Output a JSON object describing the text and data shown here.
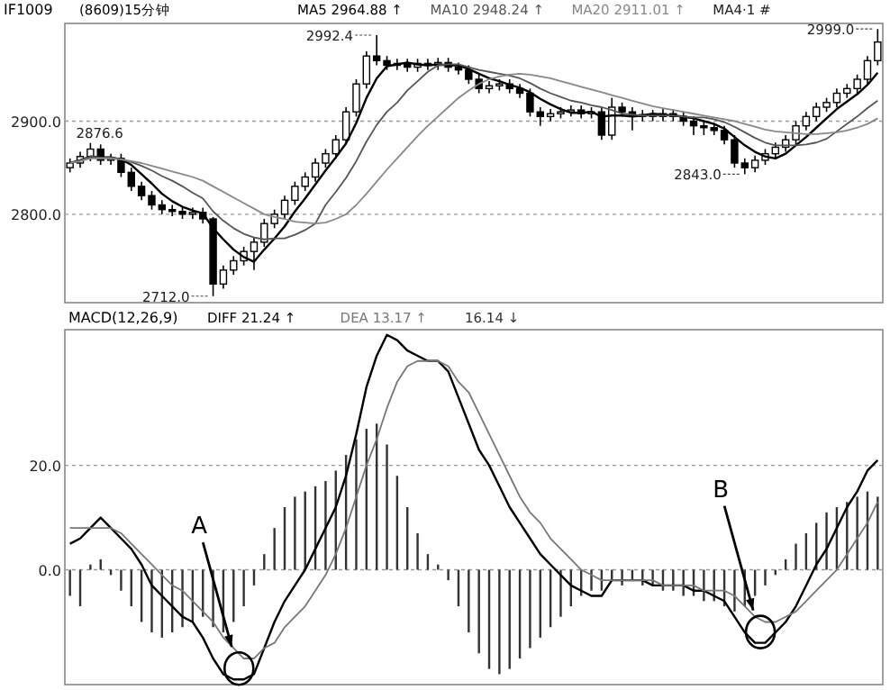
{
  "chart_data": [
    {
      "type": "candlestick",
      "title": "IF1009",
      "subtitle": "(8609)15分钟",
      "legend": "top",
      "grid": "y",
      "categories": [
        null,
        null,
        null,
        null,
        null,
        null,
        null,
        null,
        null,
        null,
        null,
        null,
        null,
        null,
        null,
        null,
        null,
        null,
        null,
        null,
        null,
        null,
        null,
        null,
        null,
        null,
        null,
        null,
        null,
        null,
        null,
        null,
        null,
        null,
        null,
        null,
        null,
        null,
        null,
        null,
        null,
        null,
        null,
        null,
        null,
        null,
        null,
        null,
        null,
        null,
        null,
        null,
        null,
        null,
        null,
        null,
        null,
        null,
        null,
        null,
        null,
        null,
        null,
        null,
        null,
        null,
        null,
        null,
        null,
        null,
        null,
        null,
        null,
        null,
        null,
        null,
        null,
        null,
        null,
        null
      ],
      "ylim": [
        2705,
        3005
      ],
      "yticks": [
        {
          "value": 2900,
          "label": "2900.0"
        },
        {
          "value": 2800,
          "label": "2800.0"
        }
      ],
      "ohlc": [
        [
          2850,
          2860,
          2845,
          2855
        ],
        [
          2855,
          2867,
          2850,
          2862
        ],
        [
          2862,
          2876.6,
          2857,
          2870
        ],
        [
          2870,
          2875,
          2853,
          2858
        ],
        [
          2858,
          2865,
          2853,
          2860
        ],
        [
          2860,
          2865,
          2840,
          2845
        ],
        [
          2845,
          2850,
          2825,
          2830
        ],
        [
          2830,
          2835,
          2815,
          2820
        ],
        [
          2820,
          2825,
          2805,
          2810
        ],
        [
          2810,
          2815,
          2800,
          2805
        ],
        [
          2805,
          2810,
          2798,
          2803
        ],
        [
          2803,
          2808,
          2795,
          2800
        ],
        [
          2800,
          2807,
          2795,
          2802
        ],
        [
          2802,
          2807,
          2790,
          2795
        ],
        [
          2795,
          2797,
          2712,
          2725
        ],
        [
          2725,
          2745,
          2720,
          2740
        ],
        [
          2740,
          2755,
          2735,
          2750
        ],
        [
          2750,
          2765,
          2745,
          2760
        ],
        [
          2760,
          2775,
          2740,
          2770
        ],
        [
          2770,
          2795,
          2765,
          2790
        ],
        [
          2790,
          2805,
          2785,
          2800
        ],
        [
          2800,
          2820,
          2795,
          2815
        ],
        [
          2815,
          2835,
          2810,
          2830
        ],
        [
          2830,
          2845,
          2825,
          2840
        ],
        [
          2840,
          2860,
          2835,
          2855
        ],
        [
          2855,
          2870,
          2850,
          2865
        ],
        [
          2865,
          2885,
          2860,
          2880
        ],
        [
          2880,
          2915,
          2875,
          2910
        ],
        [
          2910,
          2945,
          2905,
          2940
        ],
        [
          2940,
          2975,
          2935,
          2970
        ],
        [
          2970,
          2992.4,
          2960,
          2965
        ],
        [
          2965,
          2970,
          2955,
          2960
        ],
        [
          2960,
          2967,
          2955,
          2962
        ],
        [
          2962,
          2967,
          2953,
          2958
        ],
        [
          2958,
          2967,
          2953,
          2962
        ],
        [
          2962,
          2967,
          2955,
          2960
        ],
        [
          2960,
          2968,
          2955,
          2963
        ],
        [
          2963,
          2968,
          2953,
          2958
        ],
        [
          2958,
          2963,
          2950,
          2955
        ],
        [
          2955,
          2960,
          2940,
          2945
        ],
        [
          2945,
          2950,
          2930,
          2935
        ],
        [
          2935,
          2943,
          2930,
          2938
        ],
        [
          2938,
          2945,
          2933,
          2940
        ],
        [
          2940,
          2945,
          2930,
          2935
        ],
        [
          2935,
          2940,
          2925,
          2930
        ],
        [
          2930,
          2935,
          2905,
          2910
        ],
        [
          2910,
          2915,
          2895,
          2905
        ],
        [
          2905,
          2913,
          2900,
          2908
        ],
        [
          2908,
          2915,
          2903,
          2910
        ],
        [
          2910,
          2917,
          2905,
          2912
        ],
        [
          2912,
          2917,
          2903,
          2908
        ],
        [
          2908,
          2915,
          2903,
          2910
        ],
        [
          2910,
          2915,
          2880,
          2885
        ],
        [
          2885,
          2925,
          2880,
          2915
        ],
        [
          2915,
          2920,
          2905,
          2910
        ],
        [
          2910,
          2915,
          2890,
          2905
        ],
        [
          2905,
          2912,
          2900,
          2907
        ],
        [
          2907,
          2912,
          2900,
          2905
        ],
        [
          2905,
          2913,
          2900,
          2908
        ],
        [
          2908,
          2913,
          2900,
          2905
        ],
        [
          2905,
          2910,
          2895,
          2900
        ],
        [
          2900,
          2905,
          2885,
          2895
        ],
        [
          2895,
          2900,
          2885,
          2893
        ],
        [
          2893,
          2898,
          2885,
          2890
        ],
        [
          2890,
          2895,
          2875,
          2880
        ],
        [
          2880,
          2885,
          2850,
          2855
        ],
        [
          2855,
          2860,
          2843,
          2850
        ],
        [
          2850,
          2863,
          2845,
          2858
        ],
        [
          2858,
          2870,
          2853,
          2865
        ],
        [
          2865,
          2877,
          2860,
          2872
        ],
        [
          2872,
          2885,
          2867,
          2880
        ],
        [
          2880,
          2900,
          2875,
          2895
        ],
        [
          2895,
          2910,
          2890,
          2905
        ],
        [
          2905,
          2920,
          2900,
          2915
        ],
        [
          2915,
          2925,
          2910,
          2920
        ],
        [
          2920,
          2935,
          2915,
          2930
        ],
        [
          2930,
          2940,
          2925,
          2935
        ],
        [
          2935,
          2950,
          2930,
          2945
        ],
        [
          2945,
          2970,
          2940,
          2965
        ],
        [
          2965,
          2999,
          2960,
          2985
        ]
      ],
      "series": [
        {
          "name": "MA5 2964.88 ↑",
          "type": "line",
          "color": "#000000",
          "values": [
            2855,
            2858,
            2862,
            2861,
            2861,
            2859,
            2853,
            2843,
            2833,
            2822,
            2814,
            2808,
            2804,
            2801,
            2785,
            2773,
            2762,
            2754,
            2749,
            2762,
            2774,
            2787,
            2803,
            2817,
            2832,
            2847,
            2861,
            2876,
            2898,
            2925,
            2946,
            2959,
            2961,
            2963,
            2961,
            2960,
            2961,
            2960,
            2960,
            2956,
            2951,
            2946,
            2943,
            2939,
            2936,
            2931,
            2924,
            2918,
            2913,
            2909,
            2909,
            2910,
            2905,
            2906,
            2906,
            2905,
            2906,
            2908,
            2907,
            2906,
            2905,
            2903,
            2900,
            2897,
            2892,
            2883,
            2874,
            2867,
            2862,
            2860,
            2865,
            2874,
            2883,
            2893,
            2903,
            2913,
            2921,
            2929,
            2939,
            2952
          ]
        },
        {
          "name": "MA10 2948.24 ↑",
          "type": "line",
          "color": "#555555",
          "values": [
            2855,
            2858,
            2862,
            2861,
            2861,
            2859,
            2856,
            2852,
            2847,
            2841,
            2836,
            2830,
            2823,
            2817,
            2803,
            2793,
            2785,
            2779,
            2775,
            2773,
            2774,
            2774,
            2778,
            2783,
            2790,
            2810,
            2824,
            2839,
            2857,
            2878,
            2896,
            2910,
            2920,
            2933,
            2943,
            2953,
            2960,
            2961,
            2961,
            2958,
            2955,
            2953,
            2951,
            2949,
            2946,
            2941,
            2935,
            2930,
            2926,
            2922,
            2920,
            2917,
            2915,
            2912,
            2908,
            2907,
            2906,
            2906,
            2906,
            2906,
            2905,
            2904,
            2904,
            2902,
            2899,
            2894,
            2888,
            2882,
            2877,
            2874,
            2874,
            2874,
            2875,
            2877,
            2881,
            2889,
            2897,
            2905,
            2914,
            2922
          ]
        },
        {
          "name": "MA20 2911.01 ↑",
          "type": "line",
          "color": "#888888",
          "values": [
            2855,
            2857,
            2860,
            2860,
            2860,
            2859,
            2857,
            2855,
            2852,
            2849,
            2846,
            2843,
            2840,
            2836,
            2830,
            2824,
            2818,
            2812,
            2806,
            2800,
            2797,
            2795,
            2792,
            2791,
            2790,
            2791,
            2795,
            2800,
            2810,
            2822,
            2835,
            2848,
            2860,
            2872,
            2884,
            2895,
            2905,
            2915,
            2925,
            2933,
            2940,
            2945,
            2948,
            2950,
            2951,
            2950,
            2948,
            2946,
            2943,
            2940,
            2937,
            2934,
            2931,
            2928,
            2925,
            2922,
            2919,
            2916,
            2914,
            2912,
            2910,
            2908,
            2906,
            2904,
            2902,
            2900,
            2897,
            2894,
            2891,
            2889,
            2888,
            2887,
            2886,
            2886,
            2887,
            2888,
            2890,
            2893,
            2897,
            2903
          ]
        }
      ],
      "annotations": [
        "MA4·1 #",
        "2876.6",
        "2992.4",
        "2712.0",
        "2843.0",
        "2999.0"
      ]
    },
    {
      "type": "bar",
      "title": "MACD(12,26,9)",
      "legend": "top",
      "grid": "y",
      "categories": [
        null,
        null,
        null,
        null,
        null,
        null,
        null,
        null,
        null,
        null,
        null,
        null,
        null,
        null,
        null,
        null,
        null,
        null,
        null,
        null,
        null,
        null,
        null,
        null,
        null,
        null,
        null,
        null,
        null,
        null,
        null,
        null,
        null,
        null,
        null,
        null,
        null,
        null,
        null,
        null,
        null,
        null,
        null,
        null,
        null,
        null,
        null,
        null,
        null,
        null,
        null,
        null,
        null,
        null,
        null,
        null,
        null,
        null,
        null,
        null,
        null,
        null,
        null,
        null,
        null,
        null,
        null,
        null,
        null,
        null,
        null,
        null,
        null,
        null,
        null,
        null,
        null,
        null,
        null,
        null
      ],
      "ylim": [
        -22,
        46
      ],
      "yticks": [
        {
          "value": 20,
          "label": "20.0"
        },
        {
          "value": 0,
          "label": "0.0"
        }
      ],
      "series": [
        {
          "name": "DIFF  21.24 ↑",
          "type": "line",
          "color": "#000000",
          "values": [
            5,
            6,
            8,
            10,
            8,
            6,
            4,
            1,
            -3,
            -5,
            -7,
            -9,
            -10,
            -13,
            -17,
            -20,
            -21,
            -21,
            -20,
            -15,
            -10,
            -6,
            -3,
            0,
            4,
            8,
            12,
            18,
            26,
            35,
            41,
            45,
            44,
            42,
            41,
            40,
            40,
            38,
            33,
            28,
            23,
            20,
            16,
            12,
            9,
            6,
            3,
            1,
            -1,
            -3,
            -4,
            -5,
            -5,
            -2,
            -2,
            -2,
            -2,
            -3,
            -3,
            -3,
            -3,
            -4,
            -4,
            -5,
            -6,
            -9,
            -12,
            -14,
            -14,
            -12,
            -10,
            -7,
            -3,
            1,
            4,
            8,
            12,
            15,
            19,
            21
          ]
        },
        {
          "name": "DEA  13.17 ↑",
          "type": "line",
          "color": "#777777",
          "values": [
            8,
            8,
            8,
            8,
            8,
            7,
            5,
            3,
            1,
            -1,
            -3,
            -4,
            -6,
            -8,
            -10,
            -13,
            -15,
            -17,
            -17,
            -15,
            -14,
            -11,
            -9,
            -7,
            -4,
            -1,
            3,
            8,
            14,
            20,
            25,
            31,
            36,
            39,
            40,
            40,
            40,
            39,
            36,
            34,
            30,
            26,
            22,
            18,
            14,
            11,
            9,
            6,
            4,
            2,
            0,
            -1,
            -2,
            -2,
            -2,
            -2,
            -2,
            -2,
            -3,
            -3,
            -3,
            -3,
            -4,
            -4,
            -4,
            -5,
            -7,
            -9,
            -10,
            -10,
            -9,
            -8,
            -6,
            -4,
            -2,
            0,
            3,
            6,
            9,
            13
          ]
        },
        {
          "name": "16.14 ↓",
          "type": "bar",
          "color": "#333333",
          "values": [
            -5,
            -7,
            1,
            2,
            -1,
            -4,
            -7,
            -10,
            -12,
            -13,
            -12,
            -11,
            -10,
            -9,
            -11,
            -12,
            -10,
            -7,
            -3,
            3,
            8,
            12,
            14,
            15,
            16,
            17,
            19,
            22,
            25,
            27,
            28,
            24,
            18,
            12,
            7,
            3,
            1,
            -2,
            -7,
            -12,
            -16,
            -19,
            -20,
            -19,
            -17,
            -15,
            -13,
            -11,
            -9,
            -7,
            -5,
            -4,
            -4,
            -2,
            -3,
            -2,
            -3,
            -3,
            -4,
            -4,
            -5,
            -5,
            -6,
            -6,
            -7,
            -8,
            -7,
            -5,
            -3,
            -1,
            2,
            5,
            7,
            9,
            11,
            12,
            13,
            14,
            15,
            14
          ]
        }
      ],
      "annotations": [
        "A",
        "B"
      ]
    }
  ]
}
